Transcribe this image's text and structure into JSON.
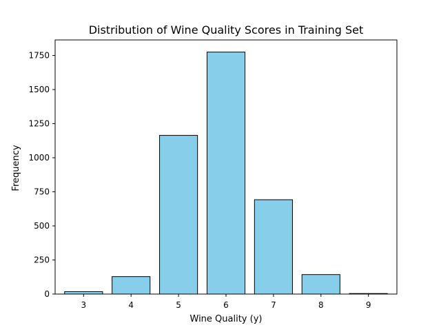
{
  "chart_data": {
    "type": "bar",
    "title": "Distribution of Wine Quality Scores in Training Set",
    "xlabel": "Wine Quality (y)",
    "ylabel": "Frequency",
    "categories": [
      "3",
      "4",
      "5",
      "6",
      "7",
      "8",
      "9"
    ],
    "values": [
      18,
      128,
      1164,
      1775,
      692,
      143,
      4
    ],
    "xlim": [
      2.4,
      9.6
    ],
    "ylim": [
      0,
      1864
    ],
    "yticks": [
      0,
      250,
      500,
      750,
      1000,
      1250,
      1500,
      1750
    ],
    "grid": false,
    "legend": "none",
    "colors": {
      "bar_fill": "#87ceeb",
      "bar_edge": "#000000",
      "axis": "#000000"
    }
  }
}
